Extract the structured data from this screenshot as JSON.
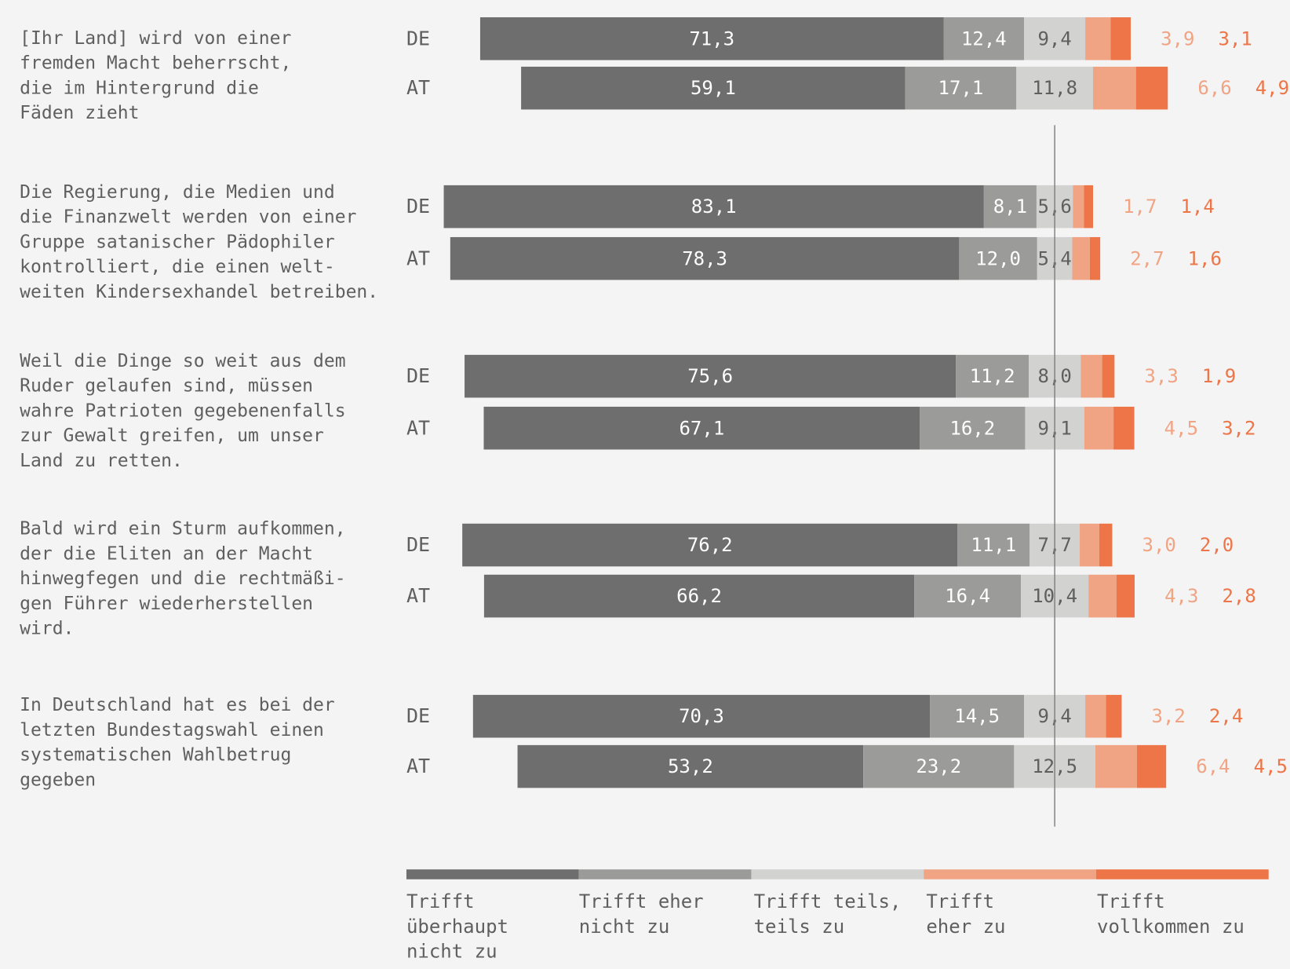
{
  "chart_data": {
    "type": "bar",
    "orientation": "horizontal",
    "stacked": true,
    "center_line": "middle of 'Trifft teils, teils zu'",
    "series": [
      {
        "name": "Trifft überhaupt nicht zu",
        "color": "#6e6e6e",
        "label_color": "#ffffff"
      },
      {
        "name": "Trifft eher nicht zu",
        "color": "#9b9b9a",
        "label_color": "#ffffff"
      },
      {
        "name": "Trifft teils, teils zu",
        "color": "#d2d2d1",
        "label_color": "#5f5f5f"
      },
      {
        "name": "Trifft eher zu",
        "color": "#f0a484",
        "label_color": "#f0a484"
      },
      {
        "name": "Trifft vollkommen zu",
        "color": "#ed7547",
        "label_color": "#ed7547"
      }
    ],
    "groups": [
      {
        "statement_lines": [
          "[Ihr Land] wird von einer",
          "fremden Macht beherrscht,",
          "die im Hintergrund die",
          "Fäden zieht"
        ],
        "rows": [
          {
            "country": "DE",
            "values": [
              71.3,
              12.4,
              9.4,
              3.9,
              3.1
            ],
            "labels": [
              "71,3",
              "12,4",
              "9,4",
              "3,9",
              "3,1"
            ]
          },
          {
            "country": "AT",
            "values": [
              59.1,
              17.1,
              11.8,
              6.6,
              4.9
            ],
            "labels": [
              "59,1",
              "17,1",
              "11,8",
              "6,6",
              "4,9"
            ]
          }
        ]
      },
      {
        "statement_lines": [
          "Die Regierung, die Medien und",
          "die Finanzwelt werden von einer",
          "Gruppe satanischer Pädophiler",
          "kontrolliert, die einen welt-",
          "weiten Kindersexhandel betreiben."
        ],
        "rows": [
          {
            "country": "DE",
            "values": [
              83.1,
              8.1,
              5.6,
              1.7,
              1.4
            ],
            "labels": [
              "83,1",
              "8,1",
              "5,6",
              "1,7",
              "1,4"
            ]
          },
          {
            "country": "AT",
            "values": [
              78.3,
              12.0,
              5.4,
              2.7,
              1.6
            ],
            "labels": [
              "78,3",
              "12,0",
              "5,4",
              "2,7",
              "1,6"
            ]
          }
        ]
      },
      {
        "statement_lines": [
          "Weil die Dinge so weit aus dem",
          "Ruder gelaufen sind, müssen",
          "wahre Patrioten gegebenenfalls",
          "zur Gewalt greifen, um unser",
          "Land zu retten."
        ],
        "rows": [
          {
            "country": "DE",
            "values": [
              75.6,
              11.2,
              8.0,
              3.3,
              1.9
            ],
            "labels": [
              "75,6",
              "11,2",
              "8,0",
              "3,3",
              "1,9"
            ]
          },
          {
            "country": "AT",
            "values": [
              67.1,
              16.2,
              9.1,
              4.5,
              3.2
            ],
            "labels": [
              "67,1",
              "16,2",
              "9,1",
              "4,5",
              "3,2"
            ]
          }
        ]
      },
      {
        "statement_lines": [
          "Bald wird ein Sturm aufkommen,",
          "der die Eliten an der Macht",
          "hinwegfegen und die rechtmäßi-",
          "gen Führer wiederherstellen",
          "wird."
        ],
        "rows": [
          {
            "country": "DE",
            "values": [
              76.2,
              11.1,
              7.7,
              3.0,
              2.0
            ],
            "labels": [
              "76,2",
              "11,1",
              "7,7",
              "3,0",
              "2,0"
            ]
          },
          {
            "country": "AT",
            "values": [
              66.2,
              16.4,
              10.4,
              4.3,
              2.8
            ],
            "labels": [
              "66,2",
              "16,4",
              "10,4",
              "4,3",
              "2,8"
            ]
          }
        ]
      },
      {
        "statement_lines": [
          "In Deutschland hat es bei der",
          "letzten Bundestagswahl einen",
          "systematischen Wahlbetrug",
          "gegeben"
        ],
        "rows": [
          {
            "country": "DE",
            "values": [
              70.3,
              14.5,
              9.4,
              3.2,
              2.4
            ],
            "labels": [
              "70,3",
              "14,5",
              "9,4",
              "3,2",
              "2,4"
            ]
          },
          {
            "country": "AT",
            "values": [
              53.2,
              23.2,
              12.5,
              6.4,
              4.5
            ],
            "labels": [
              "53,2",
              "23,2",
              "12,5",
              "6,4",
              "4,5"
            ]
          }
        ]
      }
    ],
    "legend": {
      "placement": "bottom",
      "items": [
        {
          "lines": [
            "Trifft",
            "überhaupt",
            "nicht zu"
          ],
          "color": "#6e6e6e"
        },
        {
          "lines": [
            "Trifft eher",
            "nicht zu"
          ],
          "color": "#9b9b9a"
        },
        {
          "lines": [
            "Trifft teils,",
            "teils zu"
          ],
          "color": "#d2d2d1"
        },
        {
          "lines": [
            "Trifft",
            "eher zu"
          ],
          "color": "#f0a484"
        },
        {
          "lines": [
            "Trifft",
            "vollkommen zu"
          ],
          "color": "#ed7547"
        }
      ]
    }
  }
}
